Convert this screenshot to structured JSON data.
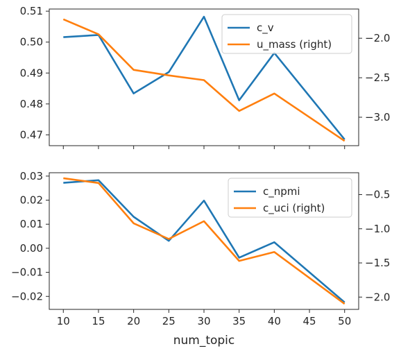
{
  "figure": {
    "xlabel": "num_topic",
    "colors": {
      "blue": "#1f77b4",
      "orange": "#ff7f0e"
    }
  },
  "chart_data": [
    {
      "type": "line",
      "x": [
        10,
        15,
        20,
        25,
        30,
        35,
        40,
        45,
        50
      ],
      "xticks": [
        "10",
        "15",
        "20",
        "25",
        "30",
        "35",
        "40",
        "45",
        "50"
      ],
      "xlim": [
        8.0,
        52.0
      ],
      "xlabel": "",
      "ylim": [
        0.4665,
        0.5107
      ],
      "yticks": [
        "0.47",
        "0.48",
        "0.49",
        "0.50",
        "0.51"
      ],
      "y2lim": [
        -3.36,
        -1.63
      ],
      "y2ticks": [
        "-3.0",
        "-2.5",
        "-2.0"
      ],
      "legend_position": "top-right",
      "grid": false,
      "series": [
        {
          "name": "c_v",
          "axis": "left",
          "color": "#1f77b4",
          "x": [
            10,
            15,
            20,
            25,
            30,
            35,
            40,
            50
          ],
          "values": [
            0.5016,
            0.5023,
            0.4834,
            0.4903,
            0.5082,
            0.4812,
            0.4965,
            0.4685
          ]
        },
        {
          "name": "u_mass (right)",
          "axis": "right",
          "color": "#ff7f0e",
          "x": [
            10,
            15,
            20,
            25,
            30,
            35,
            40,
            50
          ],
          "values": [
            -1.76,
            -1.95,
            -2.4,
            -2.47,
            -2.53,
            -2.92,
            -2.7,
            -3.3
          ]
        }
      ]
    },
    {
      "type": "line",
      "x": [
        10,
        15,
        20,
        25,
        30,
        35,
        40,
        45,
        50
      ],
      "xticks": [
        "10",
        "15",
        "20",
        "25",
        "30",
        "35",
        "40",
        "45",
        "50"
      ],
      "xlim": [
        8.0,
        52.0
      ],
      "xlabel": "num_topic",
      "ylim": [
        -0.0254,
        0.0314
      ],
      "yticks": [
        "−0.02",
        "−0.01",
        "0.00",
        "0.01",
        "0.02",
        "0.03"
      ],
      "y2lim": [
        -2.18,
        -0.18
      ],
      "y2ticks": [
        "-2.0",
        "-1.5",
        "-1.0",
        "-0.5"
      ],
      "legend_position": "top-right",
      "grid": false,
      "series": [
        {
          "name": "c_npmi",
          "axis": "left",
          "color": "#1f77b4",
          "x": [
            10,
            15,
            20,
            25,
            30,
            35,
            40,
            50
          ],
          "values": [
            0.0272,
            0.0283,
            0.0131,
            0.0031,
            0.0198,
            -0.0039,
            0.0025,
            -0.0225
          ]
        },
        {
          "name": "c_uci (right)",
          "axis": "right",
          "color": "#ff7f0e",
          "x": [
            10,
            15,
            20,
            25,
            30,
            35,
            40,
            50
          ],
          "values": [
            -0.26,
            -0.33,
            -0.92,
            -1.15,
            -0.89,
            -1.47,
            -1.34,
            -2.1
          ]
        }
      ]
    }
  ]
}
